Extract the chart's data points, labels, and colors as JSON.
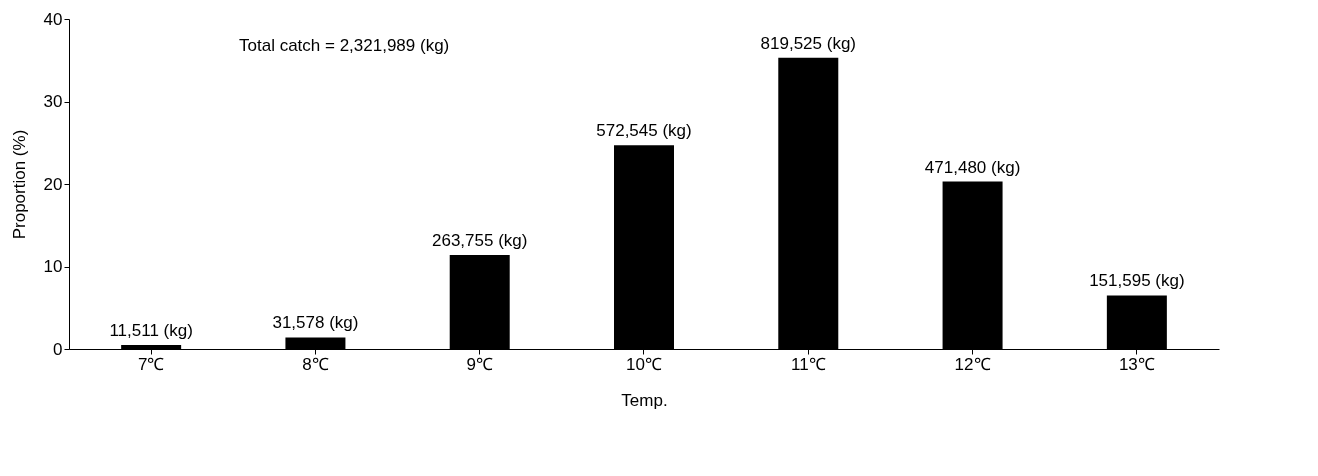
{
  "chart_data": {
    "type": "bar",
    "xlabel": "Temp.",
    "ylabel": "Proportion (%)",
    "categories": [
      "7℃",
      "8℃",
      "9℃",
      "10℃",
      "11℃",
      "12℃",
      "13℃"
    ],
    "values": [
      0.5,
      1.4,
      11.4,
      24.7,
      35.3,
      20.3,
      6.5
    ],
    "color": "#000000",
    "ylim": [
      0,
      40
    ],
    "yticks": [
      0,
      10,
      20,
      30,
      40
    ],
    "grid": false,
    "annotations": [
      "Total catch = 2,321,989 (kg)",
      {
        "text": "11,511 (kg)",
        "x": "7℃",
        "y": 0.5
      },
      {
        "text": "31,578 (kg)",
        "x": "8℃",
        "y": 1.4
      },
      {
        "text": "263,755 (kg)",
        "x": "9℃",
        "y": 11.4
      },
      {
        "text": "572,545 (kg)",
        "x": "10℃",
        "y": 24.7
      },
      {
        "text": "819,525 (kg)",
        "x": "11℃",
        "y": 35.3
      },
      {
        "text": "471,480 (kg)",
        "x": "12℃",
        "y": 20.3
      },
      {
        "text": "151,595 (kg)",
        "x": "13℃",
        "y": 6.5
      }
    ]
  }
}
